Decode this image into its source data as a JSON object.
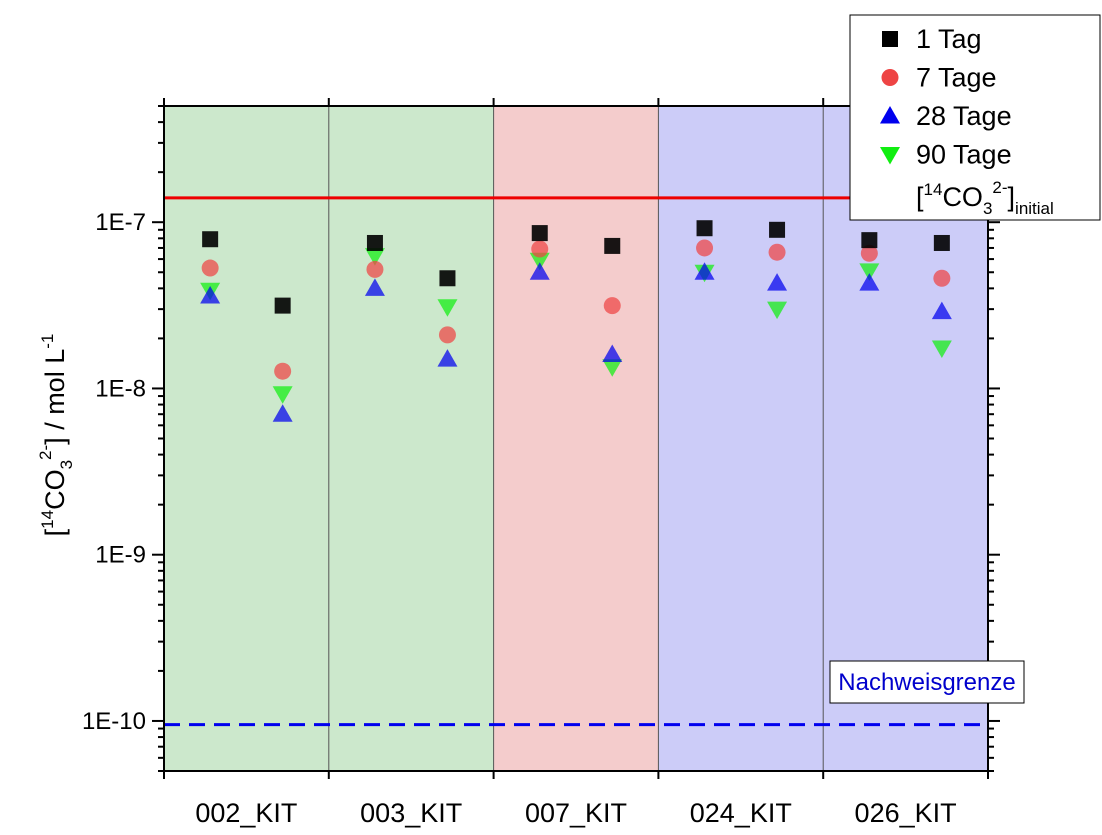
{
  "chart_data": {
    "type": "scatter",
    "yscale": "log",
    "ylim": [
      5e-11,
      5e-07
    ],
    "categories": [
      "002_KIT",
      "003_KIT",
      "007_KIT",
      "024_KIT",
      "026_KIT"
    ],
    "ylabel": {
      "open": "[",
      "sup1": "14",
      "main": "CO",
      "sub": "3",
      "sup2": "2-",
      "close": "] / mol L",
      "sup3": "-1"
    },
    "yticks": [
      {
        "value": 1e-10,
        "label": "1E-10"
      },
      {
        "value": 1e-09,
        "label": "1E-9"
      },
      {
        "value": 1e-08,
        "label": "1E-8"
      },
      {
        "value": 1e-07,
        "label": "1E-7"
      }
    ],
    "bands": [
      {
        "from": 0,
        "to": 2,
        "color": "#cce8cc"
      },
      {
        "from": 2,
        "to": 3,
        "color": "#f4cccc"
      },
      {
        "from": 3,
        "to": 5,
        "color": "#ccccf8"
      }
    ],
    "series": [
      {
        "name": "1 Tag",
        "marker": "square",
        "color": "#000000",
        "points": [
          [
            0.28,
            7.9e-08
          ],
          [
            0.72,
            3.15e-08
          ],
          [
            1.28,
            7.5e-08
          ],
          [
            1.72,
            4.6e-08
          ],
          [
            2.28,
            8.6e-08
          ],
          [
            2.72,
            7.2e-08
          ],
          [
            3.28,
            9.2e-08
          ],
          [
            3.72,
            9e-08
          ],
          [
            4.28,
            7.8e-08
          ],
          [
            4.72,
            7.5e-08
          ]
        ]
      },
      {
        "name": "7 Tage",
        "marker": "circle",
        "color": "#ee4444",
        "points": [
          [
            0.28,
            5.3e-08
          ],
          [
            0.72,
            1.27e-08
          ],
          [
            1.28,
            5.2e-08
          ],
          [
            1.72,
            2.1e-08
          ],
          [
            2.28,
            6.9e-08
          ],
          [
            2.72,
            3.15e-08
          ],
          [
            3.28,
            7e-08
          ],
          [
            3.72,
            6.6e-08
          ],
          [
            4.28,
            6.5e-08
          ],
          [
            4.72,
            4.6e-08
          ]
        ]
      },
      {
        "name": "28 Tage",
        "marker": "triangle-up",
        "color": "#0000ee",
        "points": [
          [
            0.28,
            3.6e-08
          ],
          [
            0.72,
            7e-09
          ],
          [
            1.28,
            4e-08
          ],
          [
            1.72,
            1.5e-08
          ],
          [
            2.28,
            5e-08
          ],
          [
            2.72,
            1.6e-08
          ],
          [
            3.28,
            5e-08
          ],
          [
            3.72,
            4.3e-08
          ],
          [
            4.28,
            4.3e-08
          ],
          [
            4.72,
            2.9e-08
          ]
        ]
      },
      {
        "name": "90 Tage",
        "marker": "triangle-down",
        "color": "#11ee11",
        "points": [
          [
            0.28,
            3.9e-08
          ],
          [
            0.72,
            9.3e-09
          ],
          [
            1.28,
            6.3e-08
          ],
          [
            1.72,
            3.1e-08
          ],
          [
            2.28,
            5.9e-08
          ],
          [
            2.72,
            1.35e-08
          ],
          [
            3.28,
            5e-08
          ],
          [
            3.72,
            3e-08
          ],
          [
            4.28,
            5.1e-08
          ],
          [
            4.72,
            1.75e-08
          ]
        ]
      }
    ],
    "hlines": [
      {
        "name": "initial",
        "value": 1.4e-07,
        "color": "#ee0000",
        "style": "solid"
      },
      {
        "name": "Nachweisgrenze",
        "value": 9.5e-11,
        "color": "#0000ee",
        "style": "dashed"
      }
    ],
    "legend": {
      "position": "top-right",
      "initial_label": {
        "open": "[",
        "sup1": "14",
        "main": "CO",
        "sub1": "3",
        "sup2": "2-",
        "close": "]",
        "sub2": "initial"
      }
    },
    "annotation": {
      "text": "Nachweisgrenze",
      "color": "#0000cc"
    }
  }
}
